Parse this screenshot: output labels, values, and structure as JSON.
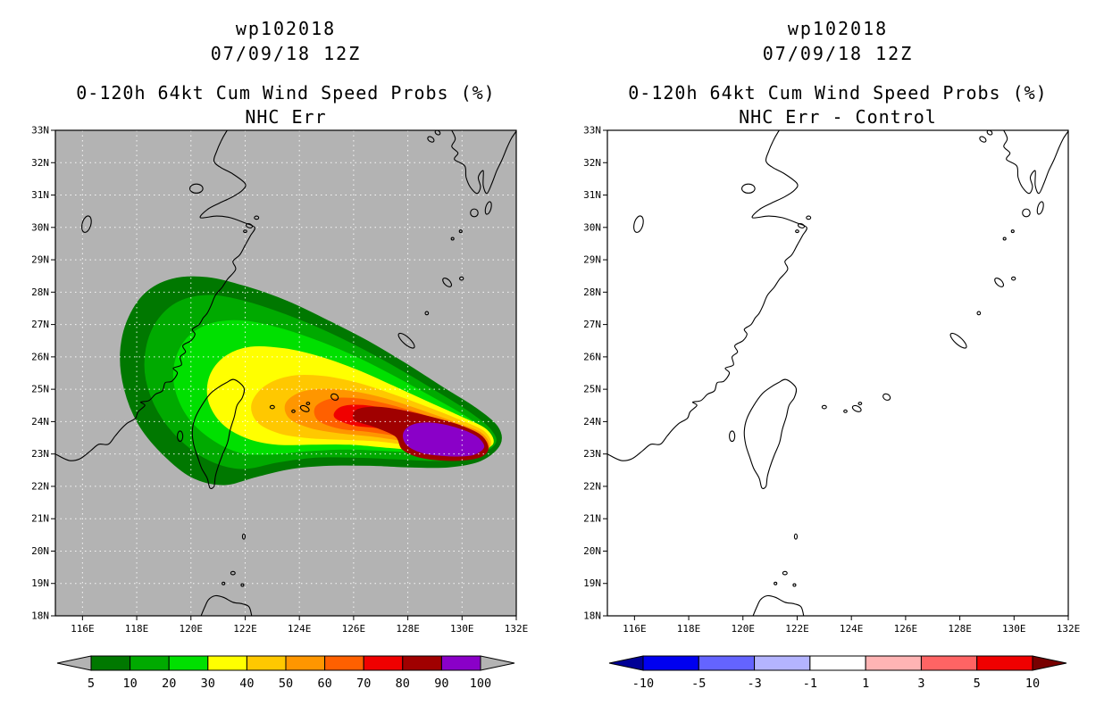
{
  "figure": {
    "background": "#ffffff"
  },
  "panels": [
    {
      "storm_id": "wp102018",
      "valid_time": "07/09/18 12Z",
      "title": "0-120h 64kt Cum Wind Speed Probs (%)",
      "subtitle": "NHC Err",
      "lat_ticks": [
        "33N",
        "32N",
        "31N",
        "30N",
        "29N",
        "28N",
        "27N",
        "26N",
        "25N",
        "24N",
        "23N",
        "22N",
        "21N",
        "20N",
        "19N",
        "18N"
      ],
      "lon_ticks": [
        "116E",
        "118E",
        "120E",
        "122E",
        "124E",
        "126E",
        "128E",
        "130E",
        "132E"
      ],
      "colorbar_labels": [
        "5",
        "10",
        "20",
        "30",
        "40",
        "50",
        "60",
        "70",
        "80",
        "90",
        "100"
      ]
    },
    {
      "storm_id": "wp102018",
      "valid_time": "07/09/18 12Z",
      "title": "0-120h 64kt Cum Wind Speed Probs (%)",
      "subtitle": "NHC Err - Control",
      "lat_ticks": [
        "33N",
        "32N",
        "31N",
        "30N",
        "29N",
        "28N",
        "27N",
        "26N",
        "25N",
        "24N",
        "23N",
        "22N",
        "21N",
        "20N",
        "19N",
        "18N"
      ],
      "lon_ticks": [
        "116E",
        "118E",
        "120E",
        "122E",
        "124E",
        "126E",
        "128E",
        "130E",
        "132E"
      ],
      "colorbar_labels": [
        "-10",
        "-5",
        "-3",
        "-1",
        "1",
        "3",
        "5",
        "10"
      ]
    }
  ],
  "chart_data": [
    {
      "type": "heatmap",
      "subtype": "filled-contour-map",
      "storm": "wp102018",
      "valid": "07/09/18 12Z",
      "title": "0-120h 64kt Cum Wind Speed Probs (%)",
      "model": "NHC Err",
      "units": "%",
      "lon_range": [
        115,
        132
      ],
      "lat_range": [
        18,
        33
      ],
      "levels": [
        5,
        10,
        20,
        30,
        40,
        50,
        60,
        70,
        80,
        90,
        100
      ],
      "palette": [
        "#007800",
        "#00aa00",
        "#00e000",
        "#ffff00",
        "#ffc800",
        "#ff9600",
        "#ff6000",
        "#f00000",
        "#a00000",
        "#8a00c8"
      ],
      "underflow_color": "#b3b3b3",
      "overflow_color": "#b3b3b3",
      "background": "#b3b3b3",
      "grid_dotted": true,
      "contours": [
        {
          "level": 5,
          "color": "#007800",
          "polygon": [
            [
              131.4,
              23.3
            ],
            [
              131.3,
              23.85
            ],
            [
              130.45,
              24.45
            ],
            [
              129.3,
              25.05
            ],
            [
              128.0,
              25.75
            ],
            [
              126.6,
              26.45
            ],
            [
              125.1,
              27.1
            ],
            [
              123.6,
              27.7
            ],
            [
              122.1,
              28.15
            ],
            [
              120.6,
              28.45
            ],
            [
              119.3,
              28.4
            ],
            [
              118.3,
              27.95
            ],
            [
              117.65,
              27.1
            ],
            [
              117.4,
              26.1
            ],
            [
              117.55,
              25.0
            ],
            [
              118.05,
              23.95
            ],
            [
              118.9,
              23.05
            ],
            [
              120.0,
              22.3
            ],
            [
              121.2,
              22.05
            ],
            [
              122.4,
              22.3
            ],
            [
              123.7,
              22.55
            ],
            [
              125.1,
              22.65
            ],
            [
              126.6,
              22.65
            ],
            [
              128.1,
              22.6
            ],
            [
              129.5,
              22.6
            ],
            [
              130.7,
              22.8
            ]
          ]
        },
        {
          "level": 10,
          "color": "#00aa00",
          "polygon": [
            [
              131.2,
              23.3
            ],
            [
              131.05,
              23.75
            ],
            [
              130.25,
              24.3
            ],
            [
              129.1,
              24.9
            ],
            [
              127.8,
              25.55
            ],
            [
              126.4,
              26.2
            ],
            [
              124.95,
              26.8
            ],
            [
              123.5,
              27.3
            ],
            [
              122.05,
              27.7
            ],
            [
              120.7,
              27.9
            ],
            [
              119.55,
              27.7
            ],
            [
              118.75,
              27.1
            ],
            [
              118.35,
              26.25
            ],
            [
              118.35,
              25.3
            ],
            [
              118.8,
              24.3
            ],
            [
              119.6,
              23.45
            ],
            [
              120.7,
              22.8
            ],
            [
              121.9,
              22.55
            ],
            [
              123.2,
              22.75
            ],
            [
              124.6,
              22.9
            ],
            [
              126.05,
              22.9
            ],
            [
              127.55,
              22.85
            ],
            [
              129.0,
              22.8
            ],
            [
              130.3,
              22.9
            ]
          ]
        },
        {
          "level": 20,
          "color": "#00e000",
          "polygon": [
            [
              131.05,
              23.3
            ],
            [
              130.85,
              23.7
            ],
            [
              130.05,
              24.2
            ],
            [
              128.9,
              24.75
            ],
            [
              127.6,
              25.35
            ],
            [
              126.2,
              25.95
            ],
            [
              124.8,
              26.45
            ],
            [
              123.4,
              26.85
            ],
            [
              122.05,
              27.1
            ],
            [
              120.85,
              27.05
            ],
            [
              119.95,
              26.65
            ],
            [
              119.45,
              25.95
            ],
            [
              119.4,
              25.1
            ],
            [
              119.85,
              24.2
            ],
            [
              120.7,
              23.5
            ],
            [
              121.8,
              23.05
            ],
            [
              123.0,
              23.0
            ],
            [
              124.35,
              23.1
            ],
            [
              125.8,
              23.15
            ],
            [
              127.3,
              23.1
            ],
            [
              128.75,
              23.05
            ],
            [
              130.05,
              23.05
            ]
          ]
        },
        {
          "level": 30,
          "color": "#ffff00",
          "polygon": [
            [
              131.1,
              23.28
            ],
            [
              130.9,
              23.75
            ],
            [
              129.95,
              24.15
            ],
            [
              128.75,
              24.6
            ],
            [
              127.45,
              25.1
            ],
            [
              126.1,
              25.6
            ],
            [
              124.75,
              26.0
            ],
            [
              123.45,
              26.25
            ],
            [
              122.2,
              26.3
            ],
            [
              121.25,
              26.0
            ],
            [
              120.7,
              25.4
            ],
            [
              120.65,
              24.65
            ],
            [
              121.15,
              23.95
            ],
            [
              122.05,
              23.5
            ],
            [
              123.15,
              23.3
            ],
            [
              124.45,
              23.3
            ],
            [
              125.85,
              23.3
            ],
            [
              127.3,
              23.2
            ],
            [
              128.75,
              23.1
            ],
            [
              130.1,
              23.05
            ]
          ]
        },
        {
          "level": 40,
          "color": "#ffc800",
          "polygon": [
            [
              131.05,
              23.27
            ],
            [
              130.8,
              23.7
            ],
            [
              129.9,
              24.05
            ],
            [
              128.7,
              24.45
            ],
            [
              127.4,
              24.85
            ],
            [
              126.1,
              25.2
            ],
            [
              124.85,
              25.4
            ],
            [
              123.7,
              25.4
            ],
            [
              122.75,
              25.1
            ],
            [
              122.25,
              24.55
            ],
            [
              122.45,
              24.0
            ],
            [
              123.25,
              23.65
            ],
            [
              124.35,
              23.5
            ],
            [
              125.6,
              23.45
            ],
            [
              126.95,
              23.4
            ],
            [
              128.3,
              23.25
            ],
            [
              129.55,
              23.15
            ],
            [
              130.45,
              23.05
            ]
          ]
        },
        {
          "level": 50,
          "color": "#ff9600",
          "polygon": [
            [
              131.0,
              23.26
            ],
            [
              130.7,
              23.65
            ],
            [
              129.8,
              23.95
            ],
            [
              128.65,
              24.3
            ],
            [
              127.4,
              24.65
            ],
            [
              126.15,
              24.9
            ],
            [
              125.0,
              25.0
            ],
            [
              124.05,
              24.9
            ],
            [
              123.5,
              24.55
            ],
            [
              123.65,
              24.1
            ],
            [
              124.45,
              23.8
            ],
            [
              125.5,
              23.65
            ],
            [
              126.7,
              23.55
            ],
            [
              127.95,
              23.4
            ],
            [
              129.15,
              23.25
            ],
            [
              130.2,
              23.1
            ],
            [
              130.7,
              23.0
            ]
          ]
        },
        {
          "level": 60,
          "color": "#ff6000",
          "polygon": [
            [
              130.95,
              23.25
            ],
            [
              130.6,
              23.6
            ],
            [
              129.7,
              23.9
            ],
            [
              128.6,
              24.2
            ],
            [
              127.4,
              24.5
            ],
            [
              126.2,
              24.7
            ],
            [
              125.2,
              24.7
            ],
            [
              124.6,
              24.45
            ],
            [
              124.7,
              24.05
            ],
            [
              125.45,
              23.8
            ],
            [
              126.5,
              23.7
            ],
            [
              127.7,
              23.55
            ],
            [
              128.9,
              23.35
            ],
            [
              129.95,
              23.15
            ],
            [
              130.55,
              23.0
            ]
          ]
        },
        {
          "level": 70,
          "color": "#f00000",
          "polygon": [
            [
              130.9,
              23.25
            ],
            [
              130.5,
              23.55
            ],
            [
              129.65,
              23.85
            ],
            [
              128.55,
              24.1
            ],
            [
              127.4,
              24.35
            ],
            [
              126.35,
              24.5
            ],
            [
              125.55,
              24.45
            ],
            [
              125.3,
              24.15
            ],
            [
              125.95,
              23.9
            ],
            [
              127.0,
              23.8
            ],
            [
              128.15,
              23.6
            ],
            [
              129.3,
              23.35
            ],
            [
              130.2,
              23.1
            ],
            [
              130.6,
              22.95
            ]
          ]
        },
        {
          "level": 80,
          "color": "#a00000",
          "polygon": [
            [
              130.95,
              23.25
            ],
            [
              130.65,
              23.6
            ],
            [
              129.85,
              23.9
            ],
            [
              128.8,
              24.15
            ],
            [
              127.75,
              24.35
            ],
            [
              126.8,
              24.45
            ],
            [
              126.1,
              24.35
            ],
            [
              126.05,
              24.05
            ],
            [
              126.75,
              23.85
            ],
            [
              127.55,
              23.55
            ],
            [
              127.8,
              23.15
            ],
            [
              128.45,
              22.9
            ],
            [
              129.45,
              22.8
            ],
            [
              130.4,
              22.85
            ],
            [
              130.85,
              23.0
            ]
          ]
        },
        {
          "level": 90,
          "color": "#8a00c8",
          "polygon": [
            [
              130.8,
              23.25
            ],
            [
              130.5,
              23.55
            ],
            [
              129.8,
              23.8
            ],
            [
              128.95,
              23.95
            ],
            [
              128.2,
              23.9
            ],
            [
              127.85,
              23.65
            ],
            [
              127.95,
              23.3
            ],
            [
              128.5,
              23.05
            ],
            [
              129.35,
              22.95
            ],
            [
              130.2,
              22.95
            ],
            [
              130.6,
              23.05
            ]
          ]
        }
      ]
    },
    {
      "type": "heatmap",
      "subtype": "filled-contour-map",
      "storm": "wp102018",
      "valid": "07/09/18 12Z",
      "title": "0-120h 64kt Cum Wind Speed Probs (%)",
      "model": "NHC Err - Control",
      "units": "%",
      "lon_range": [
        115,
        132
      ],
      "lat_range": [
        18,
        33
      ],
      "levels": [
        -10,
        -5,
        -3,
        -1,
        1,
        3,
        5,
        10
      ],
      "palette": [
        "#0000f0",
        "#6464ff",
        "#b4b4ff",
        "#ffffff",
        "#ffb4b4",
        "#ff6464",
        "#f00000"
      ],
      "underflow_color": "#000096",
      "overflow_color": "#780000",
      "background": "#ffffff",
      "grid_dotted": false,
      "contours": []
    }
  ]
}
